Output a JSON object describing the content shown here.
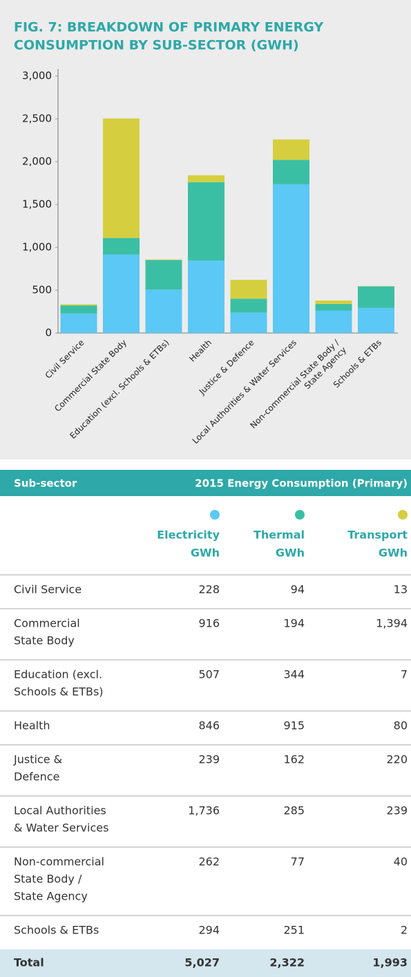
{
  "chart_data": {
    "type": "bar",
    "stacked": true,
    "title": [
      "FIG. 7: BREAKDOWN OF PRIMARY ENERGY",
      "CONSUMPTION BY SUB-SECTOR (GWH)"
    ],
    "categories": [
      [
        "Civil Service"
      ],
      [
        "Commercial State Body"
      ],
      [
        "Education (excl. Schools & ETBs)"
      ],
      [
        "Health"
      ],
      [
        "Justice & Defence"
      ],
      [
        "Local Authorities & Water Services"
      ],
      [
        "Non-commercial State Body /",
        "State Agency"
      ],
      [
        "Schools & ETBs"
      ]
    ],
    "series": [
      {
        "color": "#5bc8f5",
        "values": [
          228,
          916,
          507,
          846,
          239,
          1736,
          262,
          294
        ]
      },
      {
        "color": "#3bbfa4",
        "values": [
          94,
          194,
          344,
          915,
          162,
          285,
          77,
          251
        ]
      },
      {
        "color": "#d5cf3f",
        "values": [
          13,
          1394,
          7,
          80,
          220,
          239,
          40,
          2
        ]
      }
    ],
    "ylim": [
      0,
      3000
    ],
    "yticks": [
      0,
      500,
      {
        "value": 1000,
        "label": "1,000"
      },
      {
        "value": 1500,
        "label": "1,500"
      },
      {
        "value": 2000,
        "label": "2,000"
      },
      {
        "value": 2500,
        "label": "2,500"
      },
      {
        "value": 3000,
        "label": "3,000"
      }
    ],
    "grid": false
  },
  "table": {
    "header": [
      "Sub-sector",
      "2015 Energy Consumption (Primary)"
    ],
    "columns": [
      {
        "name": [
          "Electricity",
          "GWh"
        ],
        "color": "#5bc8f5"
      },
      {
        "name": [
          "Thermal",
          "GWh"
        ],
        "color": "#3bbfa4"
      },
      {
        "name": [
          "Transport",
          "GWh"
        ],
        "color": "#d5cf3f"
      }
    ],
    "rows": [
      {
        "label": [
          "Civil Service"
        ],
        "values": [
          "228",
          "94",
          "13"
        ]
      },
      {
        "label": [
          "Commercial",
          "State Body"
        ],
        "values": [
          "916",
          "194",
          "1,394"
        ]
      },
      {
        "label": [
          "Education (excl.",
          "Schools & ETBs)"
        ],
        "values": [
          "507",
          "344",
          "7"
        ]
      },
      {
        "label": [
          "Health"
        ],
        "values": [
          "846",
          "915",
          "80"
        ]
      },
      {
        "label": [
          "Justice &",
          "Defence"
        ],
        "values": [
          "239",
          "162",
          "220"
        ]
      },
      {
        "label": [
          "Local Authorities",
          "& Water Services"
        ],
        "values": [
          "1,736",
          "285",
          "239"
        ]
      },
      {
        "label": [
          "Non-commercial",
          "State Body /",
          "State Agency"
        ],
        "values": [
          "262",
          "77",
          "40"
        ]
      },
      {
        "label": [
          "Schools & ETBs"
        ],
        "values": [
          "294",
          "251",
          "2"
        ]
      }
    ],
    "total": {
      "label": [
        "Total"
      ],
      "values": [
        "5,027",
        "2,322",
        "1,993"
      ]
    }
  }
}
